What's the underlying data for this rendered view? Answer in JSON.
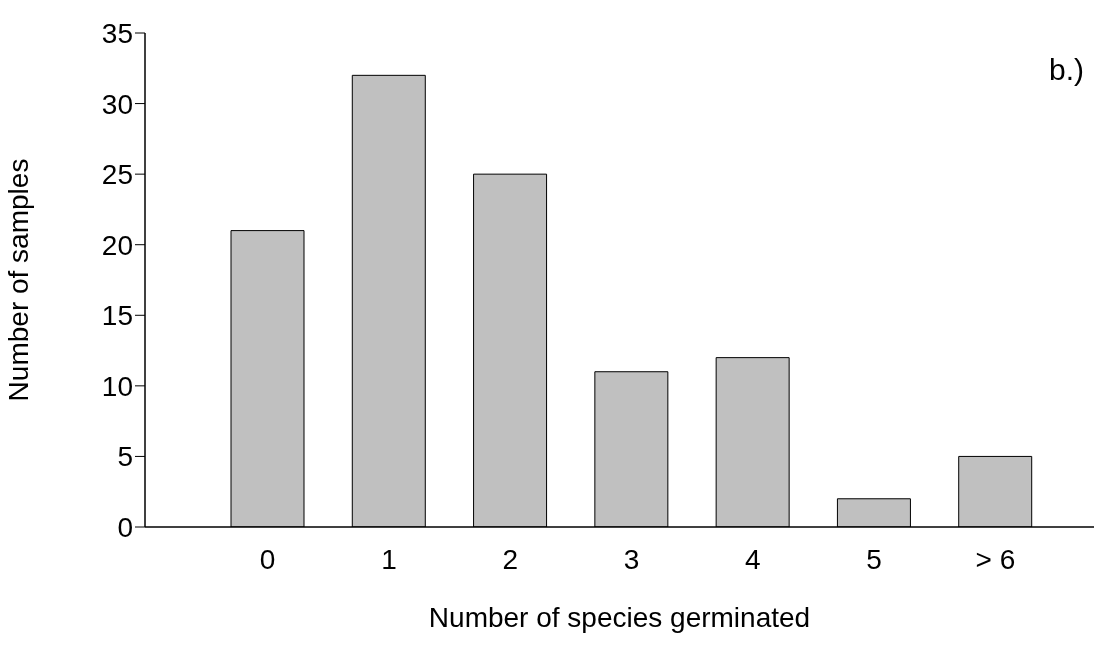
{
  "chart_data": {
    "type": "bar",
    "categories": [
      "0",
      "1",
      "2",
      "3",
      "4",
      "5",
      "> 6"
    ],
    "values": [
      21,
      32,
      25,
      11,
      12,
      2,
      5
    ],
    "color": "#c0c0c0",
    "xlabel": "Number of species germinated",
    "ylabel": "Number of samples",
    "ylim": [
      0,
      35
    ],
    "yticks": [
      0,
      5,
      10,
      15,
      20,
      25,
      30,
      35
    ],
    "annotations": [
      "b.)"
    ],
    "grid": false,
    "legend": false
  }
}
